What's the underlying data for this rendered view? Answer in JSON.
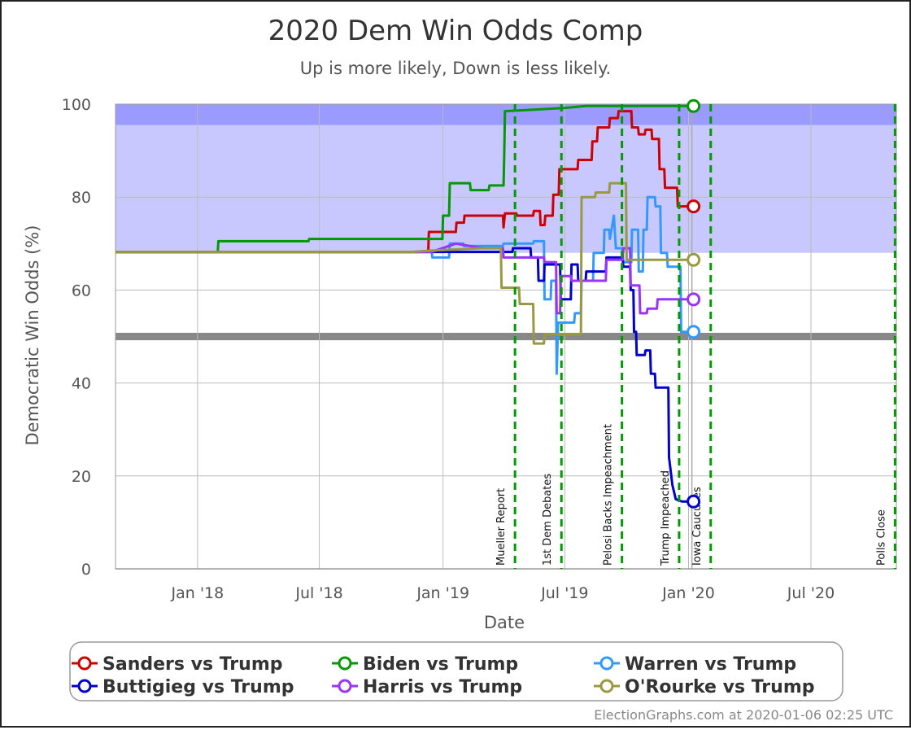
{
  "chart_data": {
    "type": "line",
    "title": "2020 Dem Win Odds Comp",
    "subtitle": "Up is more likely, Down is less likely.",
    "xlabel": "Date",
    "ylabel": "Democratic Win Odds (%)",
    "ylim": [
      0,
      100
    ],
    "xlim": [
      "2017-09-01",
      "2020-11-05"
    ],
    "y_ticks": [
      0,
      20,
      40,
      60,
      80,
      100
    ],
    "x_ticks": [
      {
        "date": "2018-01-01",
        "label": "Jan '18"
      },
      {
        "date": "2018-07-01",
        "label": "Jul '18"
      },
      {
        "date": "2019-01-01",
        "label": "Jan '19"
      },
      {
        "date": "2019-07-01",
        "label": "Jul '19"
      },
      {
        "date": "2020-01-01",
        "label": "Jan '20"
      },
      {
        "date": "2020-07-01",
        "label": "Jul '20"
      }
    ],
    "bands": [
      {
        "from": 68,
        "to": 95.5,
        "color": "#c8c8ff"
      },
      {
        "from": 95.5,
        "to": 100,
        "color": "#9a9aff"
      },
      {
        "from": 49.2,
        "to": 50.8,
        "color": "#888888"
      }
    ],
    "today": "2020-01-06",
    "events": [
      {
        "date": "2019-04-18",
        "label": "Mueller Report"
      },
      {
        "date": "2019-06-26",
        "label": "1st Dem Debates"
      },
      {
        "date": "2019-09-24",
        "label": "Pelosi Backs Impeachment"
      },
      {
        "date": "2019-12-18",
        "label": "Trump Impeached"
      },
      {
        "date": "2020-02-03",
        "label": "Iowa Caucuses"
      },
      {
        "date": "2020-11-03",
        "label": "Polls Close"
      }
    ],
    "series": [
      {
        "name": "Sanders vs Trump",
        "color": "#cc0000",
        "points": [
          [
            "2017-09-01",
            68.2
          ],
          [
            "2018-11-15",
            68.2
          ],
          [
            "2018-12-10",
            68.2
          ],
          [
            "2018-12-11",
            72.5
          ],
          [
            "2019-01-20",
            72.5
          ],
          [
            "2019-01-21",
            74.5
          ],
          [
            "2019-02-01",
            74.5
          ],
          [
            "2019-02-02",
            76
          ],
          [
            "2019-03-31",
            76
          ],
          [
            "2019-04-01",
            73.5
          ],
          [
            "2019-04-03",
            76.5
          ],
          [
            "2019-04-20",
            76.5
          ],
          [
            "2019-04-21",
            76
          ],
          [
            "2019-05-15",
            76
          ],
          [
            "2019-05-16",
            77
          ],
          [
            "2019-05-25",
            77
          ],
          [
            "2019-05-26",
            74
          ],
          [
            "2019-06-01",
            74
          ],
          [
            "2019-06-02",
            76
          ],
          [
            "2019-06-13",
            76
          ],
          [
            "2019-06-14",
            80.5
          ],
          [
            "2019-06-22",
            80.5
          ],
          [
            "2019-06-23",
            86
          ],
          [
            "2019-07-20",
            86
          ],
          [
            "2019-07-21",
            88
          ],
          [
            "2019-08-10",
            88
          ],
          [
            "2019-08-11",
            92
          ],
          [
            "2019-08-18",
            92
          ],
          [
            "2019-08-19",
            95
          ],
          [
            "2019-09-05",
            95
          ],
          [
            "2019-09-06",
            97
          ],
          [
            "2019-09-18",
            97
          ],
          [
            "2019-09-19",
            98.5
          ],
          [
            "2019-10-08",
            98.5
          ],
          [
            "2019-10-09",
            95
          ],
          [
            "2019-10-18",
            95
          ],
          [
            "2019-10-19",
            93.5
          ],
          [
            "2019-10-28",
            93.5
          ],
          [
            "2019-10-29",
            94.5
          ],
          [
            "2019-11-07",
            94.5
          ],
          [
            "2019-11-08",
            92.5
          ],
          [
            "2019-11-18",
            92.5
          ],
          [
            "2019-11-19",
            86
          ],
          [
            "2019-11-26",
            86
          ],
          [
            "2019-11-27",
            82
          ],
          [
            "2019-12-15",
            82
          ],
          [
            "2019-12-16",
            78
          ],
          [
            "2020-01-06",
            78
          ]
        ]
      },
      {
        "name": "Biden vs Trump",
        "color": "#009900",
        "points": [
          [
            "2017-09-01",
            68.2
          ],
          [
            "2018-01-31",
            68.2
          ],
          [
            "2018-02-01",
            70.5
          ],
          [
            "2018-06-15",
            70.5
          ],
          [
            "2018-06-16",
            71
          ],
          [
            "2018-12-31",
            71
          ],
          [
            "2019-01-01",
            76
          ],
          [
            "2019-01-10",
            76
          ],
          [
            "2019-01-11",
            83
          ],
          [
            "2019-02-10",
            83
          ],
          [
            "2019-02-11",
            81.5
          ],
          [
            "2019-03-10",
            81.5
          ],
          [
            "2019-03-11",
            82.5
          ],
          [
            "2019-04-01",
            82.5
          ],
          [
            "2019-04-02",
            89
          ],
          [
            "2019-04-03",
            98.5
          ],
          [
            "2019-07-01",
            99.2
          ],
          [
            "2019-08-01",
            99.6
          ],
          [
            "2020-01-06",
            99.6
          ]
        ]
      },
      {
        "name": "Warren vs Trump",
        "color": "#3399ff",
        "points": [
          [
            "2017-09-01",
            68.2
          ],
          [
            "2018-11-15",
            68.2
          ],
          [
            "2018-12-15",
            68.5
          ],
          [
            "2018-12-16",
            67
          ],
          [
            "2019-01-10",
            67
          ],
          [
            "2019-01-11",
            70
          ],
          [
            "2019-01-31",
            70
          ],
          [
            "2019-02-01",
            69.5
          ],
          [
            "2019-03-31",
            69.5
          ],
          [
            "2019-04-01",
            70
          ],
          [
            "2019-05-15",
            70
          ],
          [
            "2019-05-16",
            70.5
          ],
          [
            "2019-05-31",
            70.5
          ],
          [
            "2019-06-01",
            58
          ],
          [
            "2019-06-10",
            58
          ],
          [
            "2019-06-11",
            62
          ],
          [
            "2019-06-18",
            62
          ],
          [
            "2019-06-19",
            42
          ],
          [
            "2019-06-21",
            53
          ],
          [
            "2019-07-15",
            53
          ],
          [
            "2019-07-16",
            55
          ],
          [
            "2019-07-25",
            55
          ],
          [
            "2019-07-26",
            62
          ],
          [
            "2019-08-12",
            62
          ],
          [
            "2019-08-13",
            68
          ],
          [
            "2019-08-28",
            68
          ],
          [
            "2019-08-29",
            73
          ],
          [
            "2019-09-05",
            73
          ],
          [
            "2019-09-06",
            71
          ],
          [
            "2019-09-12",
            76
          ],
          [
            "2019-09-15",
            69
          ],
          [
            "2019-09-25",
            69
          ],
          [
            "2019-09-26",
            66
          ],
          [
            "2019-10-08",
            66
          ],
          [
            "2019-10-09",
            73
          ],
          [
            "2019-10-18",
            73
          ],
          [
            "2019-10-19",
            64
          ],
          [
            "2019-10-25",
            64
          ],
          [
            "2019-10-26",
            73
          ],
          [
            "2019-10-31",
            73
          ],
          [
            "2019-11-01",
            80
          ],
          [
            "2019-11-12",
            80
          ],
          [
            "2019-11-13",
            78
          ],
          [
            "2019-11-20",
            78
          ],
          [
            "2019-11-21",
            68
          ],
          [
            "2019-11-30",
            68
          ],
          [
            "2019-12-01",
            65
          ],
          [
            "2019-12-20",
            65
          ],
          [
            "2019-12-21",
            51
          ],
          [
            "2020-01-06",
            51
          ]
        ]
      },
      {
        "name": "Buttigieg vs Trump",
        "color": "#0000cc",
        "points": [
          [
            "2017-09-01",
            68.2
          ],
          [
            "2019-04-14",
            68.2
          ],
          [
            "2019-04-15",
            69
          ],
          [
            "2019-05-11",
            69
          ],
          [
            "2019-05-12",
            67
          ],
          [
            "2019-05-22",
            67
          ],
          [
            "2019-05-23",
            62
          ],
          [
            "2019-05-31",
            62
          ],
          [
            "2019-06-01",
            65.5
          ],
          [
            "2019-06-24",
            65.5
          ],
          [
            "2019-06-25",
            58
          ],
          [
            "2019-07-10",
            58
          ],
          [
            "2019-07-11",
            65.5
          ],
          [
            "2019-07-20",
            65.5
          ],
          [
            "2019-07-21",
            62
          ],
          [
            "2019-08-01",
            62
          ],
          [
            "2019-08-02",
            64
          ],
          [
            "2019-08-31",
            64
          ],
          [
            "2019-09-01",
            67
          ],
          [
            "2019-09-25",
            67
          ],
          [
            "2019-09-26",
            65
          ],
          [
            "2019-10-06",
            65
          ],
          [
            "2019-10-07",
            60
          ],
          [
            "2019-10-11",
            60
          ],
          [
            "2019-10-12",
            51
          ],
          [
            "2019-10-15",
            51
          ],
          [
            "2019-10-16",
            46
          ],
          [
            "2019-10-28",
            46
          ],
          [
            "2019-10-29",
            47
          ],
          [
            "2019-11-05",
            47
          ],
          [
            "2019-11-06",
            42
          ],
          [
            "2019-11-12",
            42
          ],
          [
            "2019-11-13",
            39
          ],
          [
            "2019-12-02",
            39
          ],
          [
            "2019-12-03",
            24
          ],
          [
            "2019-12-08",
            18
          ],
          [
            "2019-12-13",
            15
          ],
          [
            "2019-12-22",
            14.5
          ],
          [
            "2020-01-06",
            14.5
          ]
        ]
      },
      {
        "name": "Harris vs Trump",
        "color": "#9933ff",
        "points": [
          [
            "2017-09-01",
            68.2
          ],
          [
            "2018-11-15",
            68.2
          ],
          [
            "2018-12-15",
            68.2
          ],
          [
            "2019-01-20",
            70
          ],
          [
            "2019-03-01",
            69
          ],
          [
            "2019-03-31",
            69
          ],
          [
            "2019-04-01",
            67
          ],
          [
            "2019-05-31",
            67
          ],
          [
            "2019-06-01",
            66
          ],
          [
            "2019-06-18",
            66
          ],
          [
            "2019-06-19",
            55
          ],
          [
            "2019-06-24",
            55
          ],
          [
            "2019-06-25",
            63
          ],
          [
            "2019-07-10",
            63
          ],
          [
            "2019-07-11",
            62
          ],
          [
            "2019-08-31",
            62
          ],
          [
            "2019-09-01",
            66.5
          ],
          [
            "2019-09-25",
            66.5
          ],
          [
            "2019-09-26",
            69
          ],
          [
            "2019-10-06",
            69
          ],
          [
            "2019-10-07",
            61
          ],
          [
            "2019-10-20",
            61
          ],
          [
            "2019-10-21",
            55
          ],
          [
            "2019-10-31",
            55
          ],
          [
            "2019-11-01",
            56
          ],
          [
            "2019-11-15",
            56
          ],
          [
            "2019-11-16",
            58
          ],
          [
            "2020-01-06",
            58
          ]
        ]
      },
      {
        "name": "O'Rourke vs Trump",
        "color": "#999944",
        "points": [
          [
            "2017-09-01",
            68.2
          ],
          [
            "2018-11-15",
            68.2
          ],
          [
            "2018-12-15",
            68.5
          ],
          [
            "2019-03-01",
            69
          ],
          [
            "2019-03-28",
            69
          ],
          [
            "2019-03-29",
            60.5
          ],
          [
            "2019-04-24",
            60.5
          ],
          [
            "2019-04-25",
            57
          ],
          [
            "2019-05-15",
            57
          ],
          [
            "2019-05-16",
            48.5
          ],
          [
            "2019-05-31",
            48.5
          ],
          [
            "2019-06-01",
            50.5
          ],
          [
            "2019-07-25",
            50.5
          ],
          [
            "2019-07-26",
            80
          ],
          [
            "2019-08-15",
            80
          ],
          [
            "2019-08-16",
            81
          ],
          [
            "2019-09-05",
            81
          ],
          [
            "2019-09-06",
            83
          ],
          [
            "2019-09-30",
            83
          ],
          [
            "2019-10-01",
            66.5
          ],
          [
            "2020-01-06",
            66.5
          ]
        ]
      }
    ],
    "legend": {
      "position": "bottom",
      "entries": [
        {
          "label": "Sanders vs Trump",
          "color": "#cc0000"
        },
        {
          "label": "Biden vs Trump",
          "color": "#009900"
        },
        {
          "label": "Warren vs Trump",
          "color": "#3399ff"
        },
        {
          "label": "Buttigieg vs Trump",
          "color": "#0000cc"
        },
        {
          "label": "Harris vs Trump",
          "color": "#9933ff"
        },
        {
          "label": "O'Rourke vs Trump",
          "color": "#999944"
        }
      ]
    },
    "credit": "ElectionGraphs.com at 2020-01-06 02:25 UTC"
  }
}
